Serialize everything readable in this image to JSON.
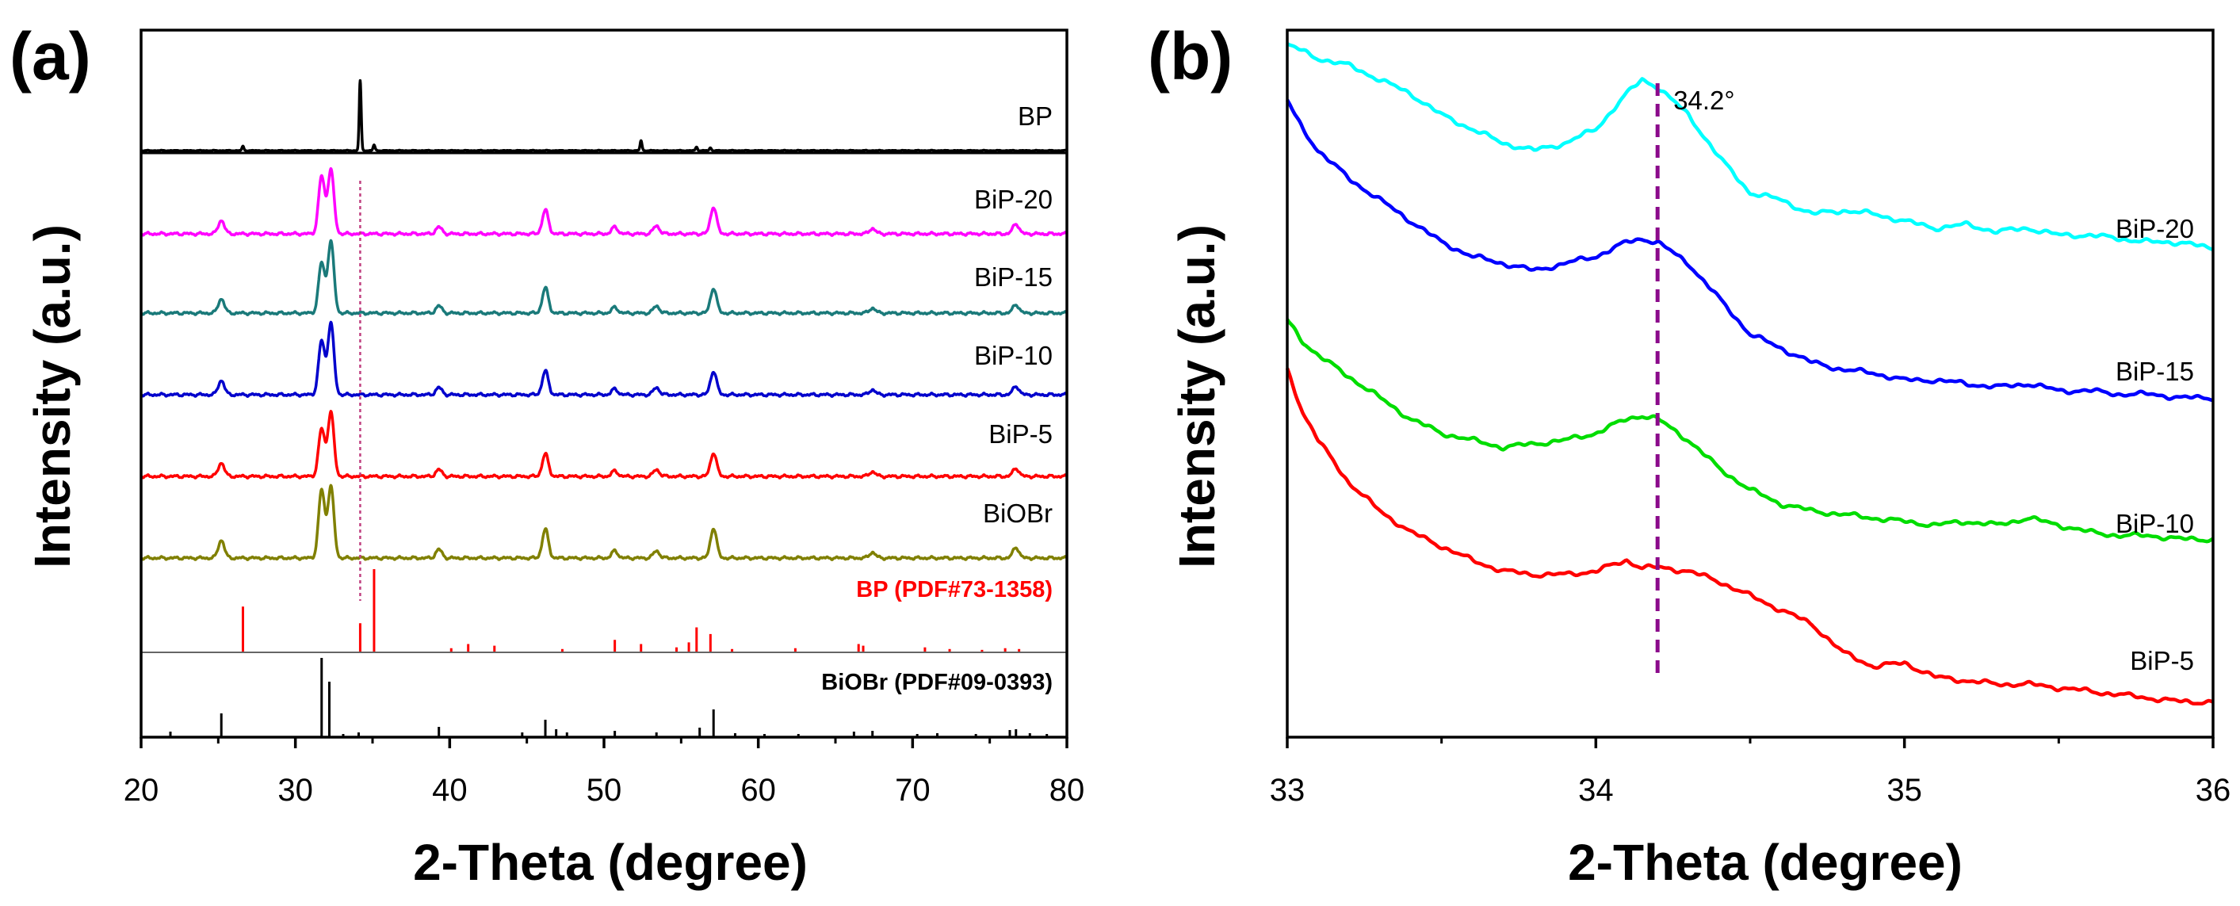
{
  "chart_data": [
    {
      "panel": "(a)",
      "type": "line",
      "title": "",
      "xlabel": "2-Theta (degree)",
      "ylabel": "Intensity (a.u.)",
      "xlim": [
        20,
        80
      ],
      "xticks": [
        "20",
        "30",
        "40",
        "50",
        "60",
        "70",
        "80"
      ],
      "xtick_values": [
        20,
        30,
        40,
        50,
        60,
        70,
        80
      ],
      "marker_line": {
        "x": 34.2,
        "style": "dotted",
        "color": "#c04080"
      },
      "series": [
        {
          "name": "BP",
          "color": "#000000",
          "peaks": [
            [
              26.6,
              0.06
            ],
            [
              34.2,
              1.0
            ],
            [
              35.1,
              0.08
            ],
            [
              52.4,
              0.14
            ],
            [
              56.0,
              0.05
            ],
            [
              56.9,
              0.04
            ]
          ]
        },
        {
          "name": "BiP-20",
          "color": "#ff00ff",
          "peaks": [
            [
              25.2,
              0.2
            ],
            [
              31.7,
              0.85
            ],
            [
              32.3,
              0.95
            ],
            [
              39.3,
              0.1
            ],
            [
              46.2,
              0.35
            ],
            [
              50.7,
              0.1
            ],
            [
              53.4,
              0.12
            ],
            [
              57.1,
              0.4
            ],
            [
              67.4,
              0.08
            ],
            [
              76.7,
              0.15
            ]
          ]
        },
        {
          "name": "BiP-15",
          "color": "#1a7a7a",
          "peaks": [
            [
              25.2,
              0.2
            ],
            [
              31.7,
              0.7
            ],
            [
              32.3,
              1.0
            ],
            [
              39.3,
              0.1
            ],
            [
              46.2,
              0.35
            ],
            [
              50.7,
              0.08
            ],
            [
              53.4,
              0.1
            ],
            [
              57.1,
              0.35
            ],
            [
              67.4,
              0.07
            ],
            [
              76.7,
              0.12
            ]
          ]
        },
        {
          "name": "BiP-10",
          "color": "#0000cc",
          "peaks": [
            [
              25.2,
              0.2
            ],
            [
              31.7,
              0.75
            ],
            [
              32.3,
              1.0
            ],
            [
              39.3,
              0.1
            ],
            [
              46.2,
              0.33
            ],
            [
              50.7,
              0.08
            ],
            [
              53.4,
              0.1
            ],
            [
              57.1,
              0.33
            ],
            [
              67.4,
              0.07
            ],
            [
              76.7,
              0.12
            ]
          ]
        },
        {
          "name": "BiP-5",
          "color": "#ff0000",
          "peaks": [
            [
              25.2,
              0.2
            ],
            [
              31.7,
              0.7
            ],
            [
              32.3,
              0.95
            ],
            [
              39.3,
              0.1
            ],
            [
              46.2,
              0.33
            ],
            [
              50.7,
              0.08
            ],
            [
              53.4,
              0.1
            ],
            [
              57.1,
              0.35
            ],
            [
              67.4,
              0.07
            ],
            [
              76.7,
              0.12
            ]
          ]
        },
        {
          "name": "BiOBr",
          "color": "#808000",
          "peaks": [
            [
              25.2,
              0.25
            ],
            [
              31.7,
              0.95
            ],
            [
              32.3,
              1.0
            ],
            [
              39.3,
              0.12
            ],
            [
              46.2,
              0.4
            ],
            [
              50.7,
              0.1
            ],
            [
              53.4,
              0.1
            ],
            [
              57.1,
              0.42
            ],
            [
              67.4,
              0.08
            ],
            [
              76.7,
              0.15
            ]
          ]
        }
      ],
      "references": [
        {
          "name": "BP (PDF#73-1358)",
          "color": "#ff0000",
          "sticks": [
            [
              26.6,
              0.55
            ],
            [
              34.2,
              0.35
            ],
            [
              35.1,
              1.0
            ],
            [
              40.1,
              0.05
            ],
            [
              41.2,
              0.1
            ],
            [
              42.9,
              0.08
            ],
            [
              47.3,
              0.04
            ],
            [
              50.7,
              0.15
            ],
            [
              52.4,
              0.1
            ],
            [
              54.7,
              0.06
            ],
            [
              55.5,
              0.12
            ],
            [
              56.0,
              0.3
            ],
            [
              56.9,
              0.22
            ],
            [
              58.3,
              0.04
            ],
            [
              62.4,
              0.05
            ],
            [
              66.5,
              0.1
            ],
            [
              66.8,
              0.08
            ],
            [
              70.8,
              0.06
            ],
            [
              72.4,
              0.04
            ],
            [
              74.5,
              0.03
            ],
            [
              76.0,
              0.05
            ],
            [
              76.9,
              0.04
            ]
          ]
        },
        {
          "name": "BiOBr (PDF#09-0393)",
          "color": "#000000",
          "sticks": [
            [
              21.9,
              0.07
            ],
            [
              25.2,
              0.3
            ],
            [
              31.7,
              1.0
            ],
            [
              32.2,
              0.7
            ],
            [
              33.1,
              0.04
            ],
            [
              34.1,
              0.06
            ],
            [
              39.3,
              0.13
            ],
            [
              44.7,
              0.06
            ],
            [
              46.2,
              0.22
            ],
            [
              46.9,
              0.1
            ],
            [
              47.6,
              0.06
            ],
            [
              50.7,
              0.08
            ],
            [
              53.4,
              0.06
            ],
            [
              56.2,
              0.12
            ],
            [
              57.1,
              0.35
            ],
            [
              58.5,
              0.05
            ],
            [
              60.4,
              0.04
            ],
            [
              62.6,
              0.04
            ],
            [
              66.2,
              0.07
            ],
            [
              67.4,
              0.08
            ],
            [
              70.3,
              0.04
            ],
            [
              71.6,
              0.05
            ],
            [
              74.1,
              0.04
            ],
            [
              76.3,
              0.09
            ],
            [
              76.7,
              0.1
            ],
            [
              77.6,
              0.05
            ],
            [
              78.7,
              0.04
            ]
          ]
        }
      ]
    },
    {
      "panel": "(b)",
      "type": "line",
      "title": "",
      "xlabel": "2-Theta (degree)",
      "ylabel": "Intensity (a.u.)",
      "xlim": [
        33,
        36
      ],
      "xticks": [
        "33",
        "34",
        "35",
        "36"
      ],
      "xtick_values": [
        33,
        34,
        35,
        36
      ],
      "marker_line": {
        "x": 34.2,
        "label": "34.2°",
        "style": "dashed",
        "color": "#8b0a8b"
      },
      "series": [
        {
          "name": "BiP-20",
          "color": "#00ffff",
          "x": [
            33.0,
            33.1,
            33.2,
            33.3,
            33.4,
            33.5,
            33.6,
            33.7,
            33.8,
            33.9,
            34.0,
            34.1,
            34.15,
            34.2,
            34.3,
            34.4,
            34.5,
            34.6,
            34.7,
            34.8,
            34.9,
            35.0,
            35.1,
            35.2,
            35.3,
            35.4,
            35.5,
            35.6,
            35.7,
            35.8,
            35.9,
            36.0
          ],
          "y": [
            0.98,
            0.96,
            0.95,
            0.93,
            0.91,
            0.88,
            0.86,
            0.84,
            0.83,
            0.84,
            0.86,
            0.91,
            0.93,
            0.92,
            0.88,
            0.82,
            0.77,
            0.76,
            0.74,
            0.745,
            0.74,
            0.73,
            0.72,
            0.725,
            0.715,
            0.72,
            0.71,
            0.71,
            0.705,
            0.7,
            0.7,
            0.69
          ]
        },
        {
          "name": "BiP-15",
          "color": "#0000ff",
          "x": [
            33.0,
            33.05,
            33.1,
            33.2,
            33.3,
            33.4,
            33.5,
            33.6,
            33.7,
            33.8,
            33.9,
            34.0,
            34.1,
            34.15,
            34.2,
            34.3,
            34.4,
            34.5,
            34.6,
            34.7,
            34.8,
            34.9,
            35.0,
            35.1,
            35.2,
            35.3,
            35.4,
            35.5,
            35.6,
            35.7,
            35.8,
            35.9,
            36.0
          ],
          "y": [
            0.9,
            0.86,
            0.83,
            0.79,
            0.76,
            0.73,
            0.7,
            0.68,
            0.67,
            0.66,
            0.67,
            0.68,
            0.7,
            0.705,
            0.7,
            0.67,
            0.62,
            0.57,
            0.55,
            0.53,
            0.52,
            0.515,
            0.505,
            0.505,
            0.5,
            0.495,
            0.5,
            0.49,
            0.49,
            0.485,
            0.485,
            0.48,
            0.48
          ]
        },
        {
          "name": "BiP-10",
          "color": "#00dd00",
          "x": [
            33.0,
            33.05,
            33.1,
            33.2,
            33.3,
            33.4,
            33.5,
            33.6,
            33.7,
            33.8,
            33.9,
            34.0,
            34.1,
            34.15,
            34.2,
            34.3,
            34.4,
            34.5,
            34.6,
            34.7,
            34.8,
            34.9,
            35.0,
            35.1,
            35.2,
            35.3,
            35.4,
            35.5,
            35.6,
            35.7,
            35.8,
            35.9,
            36.0
          ],
          "y": [
            0.59,
            0.56,
            0.54,
            0.51,
            0.48,
            0.45,
            0.43,
            0.42,
            0.41,
            0.415,
            0.42,
            0.43,
            0.45,
            0.455,
            0.45,
            0.42,
            0.38,
            0.35,
            0.33,
            0.32,
            0.315,
            0.31,
            0.305,
            0.3,
            0.305,
            0.3,
            0.31,
            0.3,
            0.29,
            0.285,
            0.285,
            0.28,
            0.28
          ]
        },
        {
          "name": "BiP-5",
          "color": "#ff0000",
          "x": [
            33.0,
            33.05,
            33.1,
            33.2,
            33.3,
            33.4,
            33.5,
            33.6,
            33.7,
            33.8,
            33.9,
            34.0,
            34.1,
            34.15,
            34.2,
            34.3,
            34.4,
            34.5,
            34.6,
            34.7,
            34.8,
            34.9,
            35.0,
            35.1,
            35.2,
            35.3,
            35.4,
            35.5,
            35.6,
            35.7,
            35.8,
            35.9,
            36.0
          ],
          "y": [
            0.52,
            0.46,
            0.42,
            0.36,
            0.32,
            0.29,
            0.27,
            0.25,
            0.235,
            0.23,
            0.23,
            0.235,
            0.25,
            0.24,
            0.24,
            0.235,
            0.22,
            0.2,
            0.18,
            0.16,
            0.12,
            0.1,
            0.105,
            0.085,
            0.08,
            0.075,
            0.075,
            0.07,
            0.065,
            0.06,
            0.055,
            0.05,
            0.05
          ]
        }
      ]
    }
  ]
}
